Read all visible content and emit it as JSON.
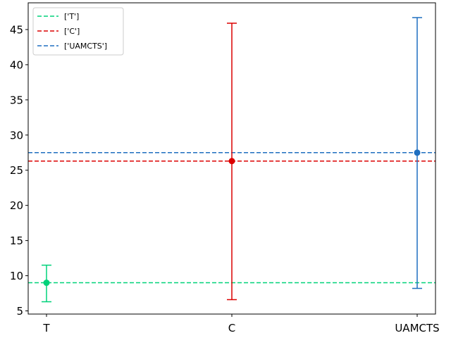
{
  "chart_data": {
    "type": "errorbar",
    "categories": [
      "T",
      "C",
      "UAMCTS"
    ],
    "series": [
      {
        "name": "['T']",
        "category": "T",
        "mean": 9.0,
        "lower": 6.3,
        "upper": 11.5,
        "color": "#00d27a"
      },
      {
        "name": "['C']",
        "category": "C",
        "mean": 26.3,
        "lower": 6.6,
        "upper": 45.9,
        "color": "#dc0000"
      },
      {
        "name": "['UAMCTS']",
        "category": "UAMCTS",
        "mean": 27.5,
        "lower": 8.2,
        "upper": 46.7,
        "color": "#1f6fc0"
      }
    ],
    "reference_lines": [
      {
        "series": "['T']",
        "y": 9.0
      },
      {
        "series": "['C']",
        "y": 26.3
      },
      {
        "series": "['UAMCTS']",
        "y": 27.5
      }
    ],
    "ylim": [
      4.55,
      48.8
    ],
    "yticks": [
      5,
      10,
      15,
      20,
      25,
      30,
      35,
      40,
      45
    ],
    "title": "",
    "xlabel": "",
    "ylabel": "",
    "legend_position": "top-left",
    "grid": false
  }
}
